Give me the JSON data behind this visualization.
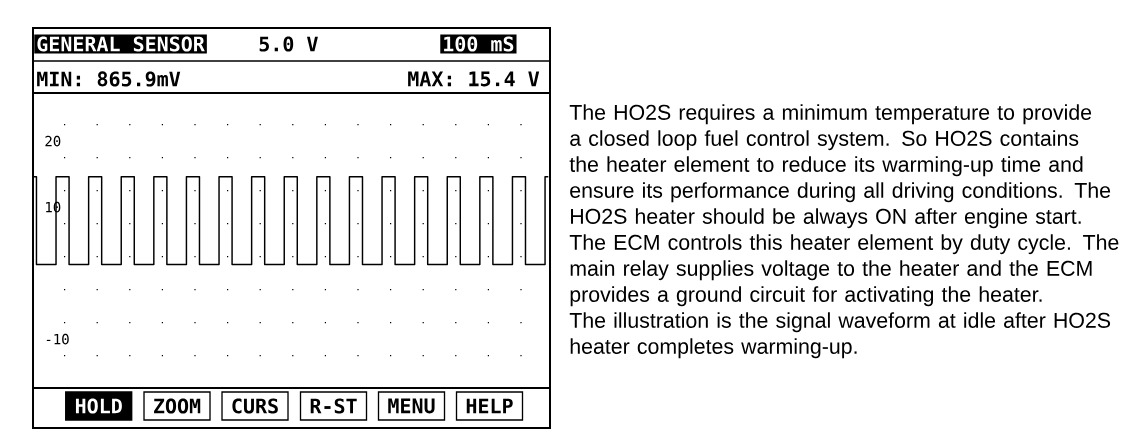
{
  "chart_data": {
    "type": "step",
    "title": "GENERAL SENSOR",
    "annotations": [
      "5.0 V",
      "100 mS",
      "MIN: 865.9mV",
      "MAX:  15.4 V",
      "HOLD",
      "ZOOM",
      "CURS",
      "R-ST",
      "MENU",
      "HELP",
      "The HO2S requires a minimum temperature to provide a closed loop fuel control system. So HO2S contains the heater element to reduce its warming-up time and ensure its performance during all driving conditions. The HO2S heater should be always ON after engine start. The ECM controls this heater element by duty cycle. The main relay supplies voltage to the heater and the ECM provides a ground circuit for activating the heater.",
      "The illustration is the signal waveform at idle after HO2S heater completes warming-up."
    ],
    "categories": [
      null,
      null,
      null,
      null,
      null,
      null,
      null,
      null,
      null,
      null,
      null,
      null,
      null,
      null,
      null,
      null,
      null,
      null,
      null,
      null,
      null,
      null,
      null,
      null,
      null,
      null,
      null,
      null,
      null,
      null,
      null,
      null,
      null,
      null,
      null,
      null,
      null,
      null,
      null,
      null,
      null,
      null,
      null,
      null,
      null,
      null,
      null,
      null,
      null,
      null,
      null,
      null,
      null,
      null,
      null,
      null,
      null,
      null,
      null,
      null,
      null,
      null,
      null,
      null,
      null,
      null,
      null,
      null,
      null,
      null,
      null,
      null,
      null,
      null,
      null,
      null,
      null,
      null,
      null,
      null
    ],
    "values": [
      14.6,
      1.3,
      1.3,
      1.3,
      14.6,
      14.6,
      1.3,
      1.3,
      1.3,
      14.6,
      14.6,
      1.3,
      1.3,
      1.3,
      14.6,
      14.6,
      1.3,
      1.3,
      1.3,
      14.6,
      14.6,
      1.3,
      1.3,
      1.3,
      14.6,
      14.6,
      1.3,
      1.3,
      1.3,
      14.6,
      14.6,
      1.3,
      1.3,
      1.3,
      14.6,
      14.6,
      1.3,
      1.3,
      1.3,
      14.6,
      14.6,
      1.3,
      1.3,
      1.3,
      14.6,
      14.6,
      1.3,
      1.3,
      1.3,
      14.6,
      14.6,
      1.3,
      1.3,
      1.3,
      14.6,
      14.6,
      1.3,
      1.3,
      1.3,
      14.6,
      14.6,
      1.3,
      1.3,
      1.3,
      14.6,
      14.6,
      1.3,
      1.3,
      1.3,
      14.6,
      14.6,
      1.3,
      1.3,
      1.3,
      14.6,
      14.6,
      1.3,
      1.3,
      1.3,
      14.6
    ],
    "color": "#000000",
    "ylim": [
      -17.4,
      27.3
    ],
    "yticks": [
      20,
      10,
      -10,
      {
        "value": 22.5,
        "label": null
      },
      {
        "value": 17.5,
        "label": null
      },
      {
        "value": 12.5,
        "label": null
      },
      {
        "value": 7.5,
        "label": null
      },
      {
        "value": 2.5,
        "label": null
      },
      {
        "value": -2.5,
        "label": null
      },
      {
        "value": -7.5,
        "label": null
      },
      {
        "value": -12.5,
        "label": null
      }
    ],
    "grid": "y"
  }
}
